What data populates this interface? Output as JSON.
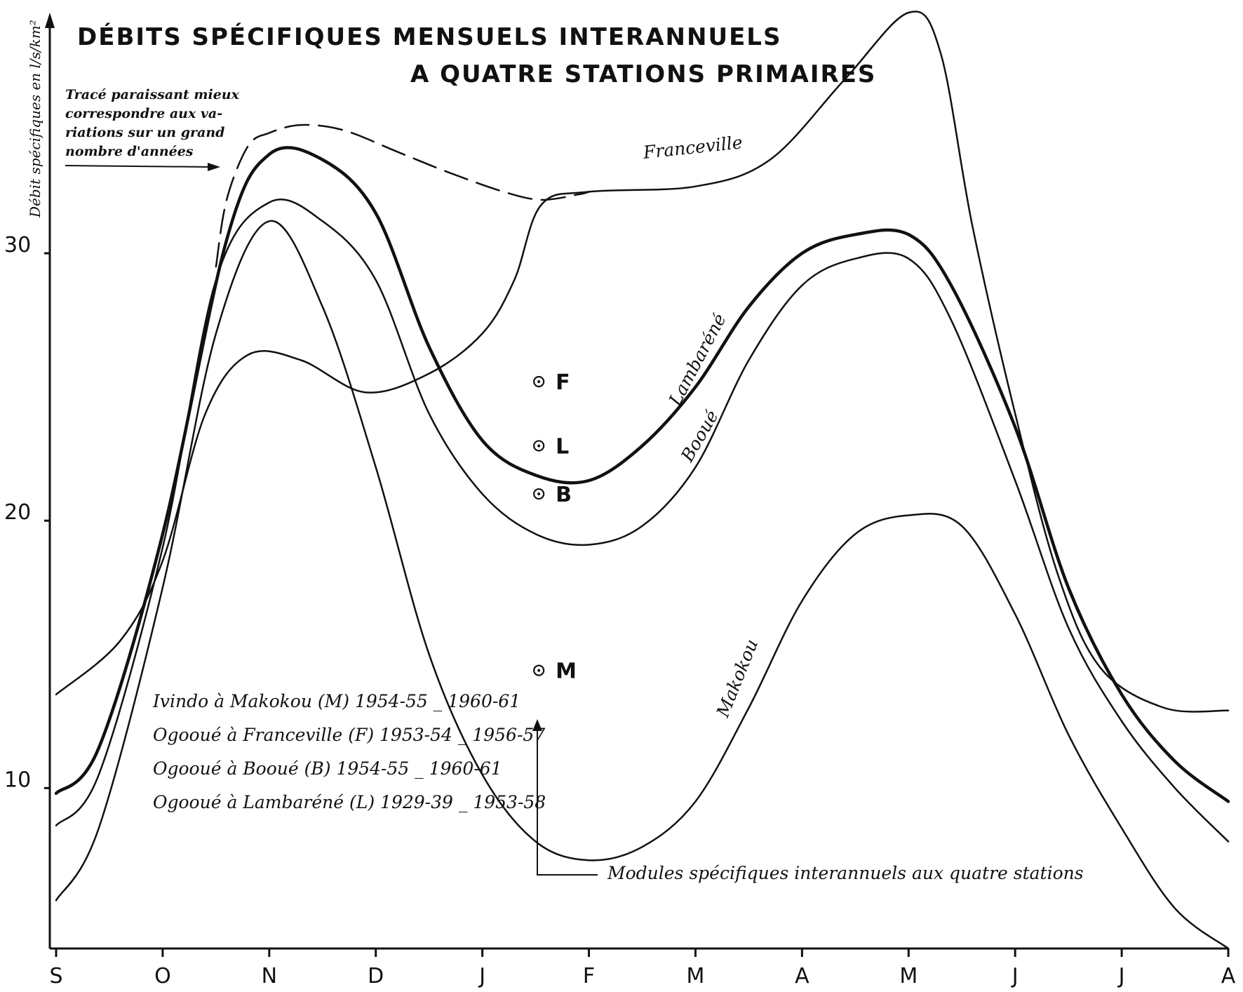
{
  "chart_data": {
    "type": "line",
    "title": "DÉBITS SPÉCIFIQUES MENSUELS INTERANNUELS",
    "subtitle": "A QUATRE STATIONS PRIMAIRES",
    "ylabel": "Débit spécifiques en l/s/km²",
    "xlabel": "",
    "categories": [
      "S",
      "O",
      "N",
      "D",
      "J",
      "F",
      "M",
      "A",
      "M",
      "J",
      "J",
      "A"
    ],
    "y_ticks": [
      10,
      20,
      30
    ],
    "ylim": [
      4,
      39
    ],
    "grid": false,
    "series": [
      {
        "name": "Franceville",
        "style": "solid",
        "width": 2.5,
        "points": [
          [
            0,
            13.5
          ],
          [
            0.6,
            15.5
          ],
          [
            1.0,
            18.5
          ],
          [
            1.4,
            24
          ],
          [
            1.8,
            26.2
          ],
          [
            2.3,
            26
          ],
          [
            2.9,
            24.8
          ],
          [
            3.5,
            25.5
          ],
          [
            4.0,
            27
          ],
          [
            4.3,
            29
          ],
          [
            4.55,
            31.8
          ],
          [
            5.0,
            32.3
          ],
          [
            6.0,
            32.5
          ],
          [
            6.7,
            33.5
          ],
          [
            7.4,
            36.5
          ],
          [
            8.0,
            39
          ],
          [
            8.3,
            37.5
          ],
          [
            8.6,
            31
          ],
          [
            9.0,
            24
          ],
          [
            9.4,
            18
          ],
          [
            9.8,
            14.5
          ],
          [
            10.4,
            13
          ],
          [
            11.0,
            12.9
          ]
        ]
      },
      {
        "name": "Lambaréné",
        "style": "bold",
        "width": 4.5,
        "points": [
          [
            0,
            9.8
          ],
          [
            0.4,
            11.5
          ],
          [
            1.0,
            19.5
          ],
          [
            1.6,
            30.5
          ],
          [
            2.0,
            33.7
          ],
          [
            2.5,
            33.5
          ],
          [
            3.0,
            31.5
          ],
          [
            3.5,
            26.5
          ],
          [
            4.0,
            23
          ],
          [
            4.5,
            21.7
          ],
          [
            5.0,
            21.5
          ],
          [
            5.5,
            22.8
          ],
          [
            6.0,
            25
          ],
          [
            6.5,
            28
          ],
          [
            7.0,
            30
          ],
          [
            7.5,
            30.7
          ],
          [
            8.0,
            30.7
          ],
          [
            8.4,
            28.8
          ],
          [
            9.0,
            23.5
          ],
          [
            9.5,
            17.5
          ],
          [
            10.0,
            13.5
          ],
          [
            10.5,
            11
          ],
          [
            11.0,
            9.5
          ]
        ]
      },
      {
        "name": "Booué",
        "style": "solid",
        "width": 2.5,
        "points": [
          [
            0,
            8.6
          ],
          [
            0.4,
            10.5
          ],
          [
            1.0,
            19
          ],
          [
            1.5,
            29
          ],
          [
            2.0,
            31.9
          ],
          [
            2.5,
            31.2
          ],
          [
            3.0,
            29
          ],
          [
            3.5,
            24
          ],
          [
            4.0,
            21
          ],
          [
            4.5,
            19.5
          ],
          [
            5.0,
            19.1
          ],
          [
            5.5,
            19.8
          ],
          [
            6.0,
            22
          ],
          [
            6.5,
            26
          ],
          [
            7.0,
            28.8
          ],
          [
            7.5,
            29.8
          ],
          [
            8.0,
            29.8
          ],
          [
            8.4,
            27.5
          ],
          [
            9.0,
            21.5
          ],
          [
            9.5,
            16
          ],
          [
            10.0,
            12.5
          ],
          [
            10.5,
            10
          ],
          [
            11.0,
            8
          ]
        ]
      },
      {
        "name": "Makokou",
        "style": "solid",
        "width": 2.5,
        "points": [
          [
            0,
            5.8
          ],
          [
            0.4,
            8.5
          ],
          [
            1.0,
            17.5
          ],
          [
            1.5,
            27
          ],
          [
            2.0,
            31.2
          ],
          [
            2.5,
            28
          ],
          [
            3.0,
            22
          ],
          [
            3.5,
            15
          ],
          [
            4.0,
            10.5
          ],
          [
            4.5,
            8
          ],
          [
            5.0,
            7.3
          ],
          [
            5.5,
            7.8
          ],
          [
            6.0,
            9.5
          ],
          [
            6.5,
            13
          ],
          [
            7.0,
            17
          ],
          [
            7.5,
            19.5
          ],
          [
            8.0,
            20.2
          ],
          [
            8.5,
            19.8
          ],
          [
            9.0,
            16.5
          ],
          [
            9.5,
            12
          ],
          [
            10.0,
            8.5
          ],
          [
            10.5,
            5.5
          ],
          [
            11.0,
            4
          ]
        ]
      },
      {
        "name": "",
        "style": "dashed",
        "width": 2.5,
        "points": [
          [
            1.5,
            29.5
          ],
          [
            1.6,
            32
          ],
          [
            1.8,
            34
          ],
          [
            2.0,
            34.5
          ],
          [
            2.3,
            34.8
          ],
          [
            2.7,
            34.6
          ],
          [
            3.2,
            33.8
          ],
          [
            3.7,
            33
          ],
          [
            4.2,
            32.3
          ],
          [
            4.55,
            32
          ],
          [
            4.9,
            32.2
          ],
          [
            5.0,
            32.3
          ]
        ]
      }
    ],
    "modules": [
      {
        "label": "F",
        "x": 4.53,
        "y": 25.2
      },
      {
        "label": "L",
        "x": 4.53,
        "y": 22.8
      },
      {
        "label": "B",
        "x": 4.53,
        "y": 21
      },
      {
        "label": "M",
        "x": 4.53,
        "y": 14.4
      }
    ],
    "annotations": {
      "dashed_note": [
        "Tracé paraissant mieux",
        "correspondre aux va-",
        "riations sur un grand",
        "nombre d'années"
      ],
      "modules_note": "Modules spécifiques interannuels aux quatre stations"
    },
    "legend_entries": [
      "Ivindo à Makokou (M) 1954-55 _ 1960-61",
      "Ogooué à Franceville (F) 1953-54 _ 1956-57",
      "Ogooué à Booué (B) 1954-55 _ 1960-61",
      "Ogooué à Lambaréné (L) 1929-39 _ 1953-58"
    ]
  }
}
